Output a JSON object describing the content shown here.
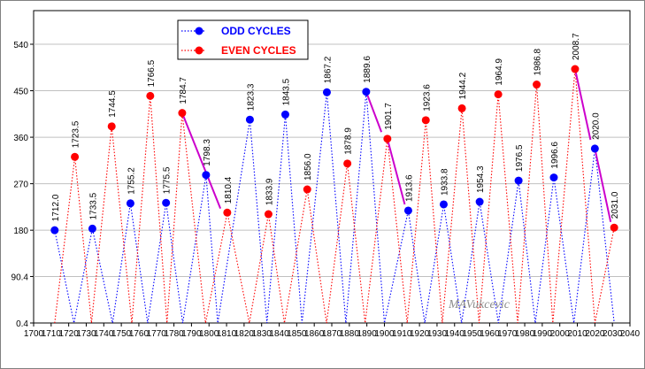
{
  "chart_data": {
    "type": "line",
    "title": "",
    "xlabel": "",
    "ylabel": "",
    "xlim": [
      1700,
      2040
    ],
    "ylim": [
      0.4,
      540
    ],
    "x_ticks": [
      "1700",
      "1710",
      "1720",
      "1730",
      "1740",
      "1750",
      "1760",
      "1770",
      "1780",
      "1790",
      "1800",
      "1810",
      "1820",
      "1830",
      "1840",
      "1850",
      "1860",
      "1870",
      "1880",
      "1890",
      "1900",
      "1910",
      "1920",
      "1930",
      "1940",
      "1950",
      "1960",
      "1970",
      "1980",
      "1990",
      "2000",
      "2010",
      "2020",
      "2030",
      "2040"
    ],
    "y_ticks": [
      {
        "value": 0.4,
        "label": "0.4"
      },
      {
        "value": 90.4,
        "label": "90.4"
      },
      {
        "value": 180,
        "label": "180"
      },
      {
        "value": 270,
        "label": "270"
      },
      {
        "value": 360,
        "label": "360"
      },
      {
        "value": 450,
        "label": "450"
      },
      {
        "value": 540,
        "label": "540"
      }
    ],
    "legend": {
      "placement": "top-left"
    },
    "series": [
      {
        "name": "ODD CYCLES",
        "color": "#0000ff",
        "dotted": true,
        "x": [
          1710,
          1712.0,
          1723,
          1733.5,
          1745,
          1755.2,
          1765,
          1775.5,
          1785,
          1798.3,
          1805,
          1823.3,
          1833,
          1843.5,
          1853,
          1867.2,
          1878,
          1889.6,
          1900,
          1913.6,
          1923,
          1933.8,
          1944,
          1954.3,
          1965,
          1976.5,
          1986,
          1996.6,
          2008,
          2020.0,
          2031
        ],
        "y": [
          180,
          180,
          0.4,
          183,
          0.4,
          232,
          0.4,
          233,
          0.4,
          287,
          0.4,
          394,
          0.4,
          404,
          0.4,
          447,
          0.4,
          448,
          0.4,
          218,
          0.4,
          230,
          0.4,
          235,
          0.4,
          276,
          0.4,
          282,
          0.4,
          338,
          0.4
        ],
        "markers": [
          1,
          3,
          5,
          7,
          9,
          11,
          13,
          15,
          17,
          19,
          21,
          23,
          25,
          27,
          29
        ]
      },
      {
        "name": "EVEN CYCLES",
        "color": "#ff0000",
        "dotted": true,
        "x": [
          1712,
          1723.5,
          1733,
          1744.5,
          1756,
          1766.5,
          1776,
          1784.7,
          1798,
          1810.4,
          1823,
          1833.9,
          1843,
          1856.0,
          1867,
          1878.9,
          1889,
          1901.7,
          1913,
          1923.6,
          1933,
          1944.2,
          1954,
          1964.9,
          1976,
          1986.8,
          1996,
          2008.7,
          2020,
          2031.0
        ],
        "y": [
          0.4,
          322,
          0.4,
          381,
          0.4,
          440,
          0.4,
          407,
          0.4,
          214,
          0.4,
          211,
          0.4,
          259,
          0.4,
          309,
          0.4,
          357,
          0.4,
          393,
          0.4,
          416,
          0.4,
          443,
          0.4,
          462,
          0.4,
          492,
          0.4,
          185
        ],
        "markers": [
          1,
          3,
          5,
          7,
          9,
          11,
          13,
          15,
          17,
          19,
          21,
          23,
          25,
          27,
          29
        ]
      }
    ],
    "trend_lines": [
      {
        "color": "#cc00cc",
        "from": [
          1784.7,
          407
        ],
        "to": [
          1806.5,
          222
        ]
      },
      {
        "color": "#cc00cc",
        "from": [
          1889.6,
          448
        ],
        "to": [
          1898.3,
          370
        ]
      },
      {
        "color": "#cc00cc",
        "from": [
          1901.7,
          357
        ],
        "to": [
          1911.6,
          230
        ]
      },
      {
        "color": "#cc00cc",
        "from": [
          2008.7,
          492
        ],
        "to": [
          2017.5,
          355
        ]
      },
      {
        "color": "#cc00cc",
        "from": [
          2020.0,
          338
        ],
        "to": [
          2029.0,
          196
        ]
      }
    ],
    "point_labels": [
      {
        "text": "1712.0",
        "x": 1712.0,
        "y": 180
      },
      {
        "text": "1723.5",
        "x": 1723.5,
        "y": 322
      },
      {
        "text": "1733.5",
        "x": 1733.5,
        "y": 183
      },
      {
        "text": "1744.5",
        "x": 1744.5,
        "y": 381
      },
      {
        "text": "1755.2",
        "x": 1755.2,
        "y": 232
      },
      {
        "text": "1766.5",
        "x": 1766.5,
        "y": 440
      },
      {
        "text": "1775.5",
        "x": 1775.5,
        "y": 233
      },
      {
        "text": "1784.7",
        "x": 1784.7,
        "y": 407
      },
      {
        "text": "1798.3",
        "x": 1798.3,
        "y": 287
      },
      {
        "text": "1810.4",
        "x": 1810.4,
        "y": 214
      },
      {
        "text": "1823.3",
        "x": 1823.3,
        "y": 394
      },
      {
        "text": "1833.9",
        "x": 1833.9,
        "y": 211
      },
      {
        "text": "1843.5",
        "x": 1843.5,
        "y": 404
      },
      {
        "text": "1856.0",
        "x": 1856.0,
        "y": 259
      },
      {
        "text": "1867.2",
        "x": 1867.2,
        "y": 447
      },
      {
        "text": "1878.9",
        "x": 1878.9,
        "y": 309
      },
      {
        "text": "1889.6",
        "x": 1889.6,
        "y": 448
      },
      {
        "text": "1901.7",
        "x": 1901.7,
        "y": 357
      },
      {
        "text": "1913.6",
        "x": 1913.6,
        "y": 218
      },
      {
        "text": "1923.6",
        "x": 1923.6,
        "y": 393
      },
      {
        "text": "1933.8",
        "x": 1933.8,
        "y": 230
      },
      {
        "text": "1944.2",
        "x": 1944.2,
        "y": 416
      },
      {
        "text": "1954.3",
        "x": 1954.3,
        "y": 235
      },
      {
        "text": "1964.9",
        "x": 1964.9,
        "y": 443
      },
      {
        "text": "1976.5",
        "x": 1976.5,
        "y": 276
      },
      {
        "text": "1986.8",
        "x": 1986.8,
        "y": 462
      },
      {
        "text": "1996.6",
        "x": 1996.6,
        "y": 282
      },
      {
        "text": "2008.7",
        "x": 2008.7,
        "y": 492
      },
      {
        "text": "2020.0",
        "x": 2020.0,
        "y": 338
      },
      {
        "text": "2031.0",
        "x": 2031.0,
        "y": 185
      }
    ],
    "signature": "MAVukcevic"
  }
}
